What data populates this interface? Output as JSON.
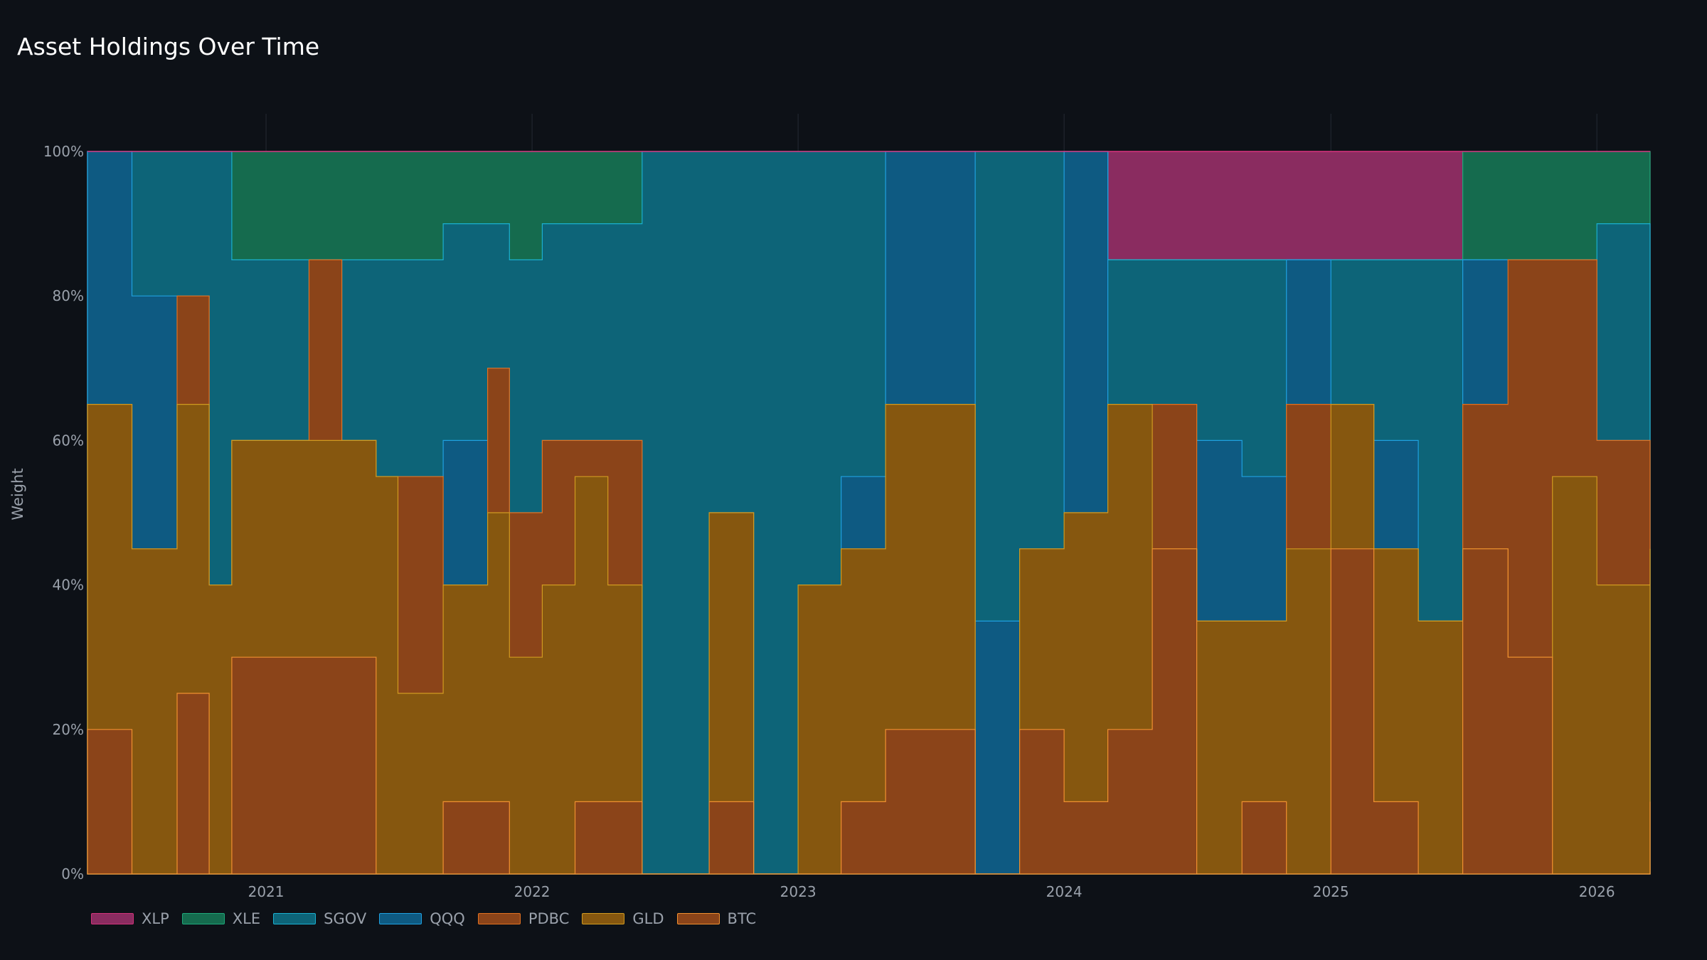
{
  "title": "Asset Holdings Over Time",
  "chart_data": {
    "type": "area",
    "stacked": true,
    "title": "Asset Holdings Over Time",
    "ylabel": "Weight",
    "xlabel": "",
    "ylim": [
      0,
      100
    ],
    "yticks": [
      "0%",
      "20%",
      "40%",
      "60%",
      "80%",
      "100%"
    ],
    "xlim": [
      "2020-05-01",
      "2026-03-15"
    ],
    "xticks": [
      "2021",
      "2022",
      "2023",
      "2024",
      "2025",
      "2026"
    ],
    "grid": true,
    "legend_position": "bottom-left",
    "legend": [
      "XLP",
      "XLE",
      "SGOV",
      "QQQ",
      "PDBC",
      "GLD",
      "BTC"
    ],
    "colors": {
      "XLP": "#8a2c60",
      "XLE": "#156b4e",
      "SGOV": "#0d6478",
      "QQQ": "#0e5a82",
      "PDBC": "#8b4419",
      "GLD": "#86570f",
      "BTC": "#8b4419"
    },
    "edge_colors": {
      "XLP": "#d0327a",
      "XLE": "#1ea87a",
      "SGOV": "#1ab0d0",
      "QQQ": "#1fa0e0",
      "PDBC": "#e07020",
      "GLD": "#d09a20",
      "BTC": "#f09030"
    },
    "series_note_units": "cumulative stacked level (%) at date; series order bottom to top: BTC, GLD, PDBC, QQQ, SGOV, XLE, XLP",
    "dates": [
      "2020-05-01",
      "2020-07-01",
      "2020-09-01",
      "2020-10-15",
      "2020-11-15",
      "2021-03-01",
      "2021-04-15",
      "2021-06-01",
      "2021-07-01",
      "2021-09-01",
      "2021-11-01",
      "2021-12-01",
      "2022-01-15",
      "2022-03-01",
      "2022-04-15",
      "2022-06-01",
      "2022-09-01",
      "2022-11-01",
      "2023-01-01",
      "2023-03-01",
      "2023-05-01",
      "2023-07-01",
      "2023-09-01",
      "2023-11-01",
      "2024-01-01",
      "2024-03-01",
      "2024-05-01",
      "2024-07-01",
      "2024-09-01",
      "2024-11-01",
      "2025-01-01",
      "2025-03-01",
      "2025-05-01",
      "2025-07-01",
      "2025-09-01",
      "2025-11-01",
      "2026-01-01",
      "2026-03-15"
    ],
    "series": [
      {
        "name": "BTC",
        "values": [
          20,
          0,
          25,
          0,
          30,
          30,
          30,
          0,
          0,
          10,
          10,
          0,
          0,
          10,
          10,
          0,
          10,
          0,
          0,
          10,
          20,
          20,
          0,
          20,
          10,
          20,
          45,
          0,
          10,
          0,
          45,
          10,
          0,
          45,
          30,
          0,
          0,
          10
        ]
      },
      {
        "name": "GLD",
        "values": [
          65,
          45,
          65,
          40,
          60,
          60,
          60,
          55,
          25,
          40,
          50,
          30,
          40,
          55,
          40,
          0,
          50,
          0,
          40,
          45,
          65,
          65,
          0,
          45,
          50,
          65,
          45,
          35,
          35,
          45,
          65,
          45,
          35,
          45,
          30,
          55,
          40,
          45
        ]
      },
      {
        "name": "PDBC",
        "values": [
          65,
          45,
          80,
          40,
          60,
          85,
          60,
          55,
          55,
          40,
          70,
          50,
          60,
          60,
          60,
          0,
          50,
          0,
          40,
          45,
          65,
          65,
          0,
          45,
          50,
          65,
          65,
          35,
          35,
          65,
          65,
          45,
          35,
          65,
          85,
          85,
          60,
          60
        ]
      },
      {
        "name": "QQQ",
        "values": [
          100,
          80,
          80,
          40,
          60,
          85,
          60,
          55,
          55,
          60,
          70,
          50,
          60,
          60,
          60,
          0,
          50,
          0,
          40,
          55,
          100,
          100,
          35,
          45,
          100,
          65,
          65,
          60,
          55,
          85,
          65,
          60,
          35,
          85,
          85,
          85,
          60,
          60
        ]
      },
      {
        "name": "SGOV",
        "values": [
          100,
          100,
          100,
          100,
          85,
          85,
          85,
          85,
          85,
          90,
          90,
          85,
          90,
          90,
          90,
          100,
          100,
          100,
          100,
          100,
          100,
          100,
          100,
          100,
          100,
          85,
          85,
          85,
          85,
          85,
          85,
          85,
          85,
          85,
          85,
          85,
          90,
          90
        ]
      },
      {
        "name": "XLE",
        "values": [
          100,
          100,
          100,
          100,
          100,
          100,
          100,
          100,
          100,
          100,
          100,
          100,
          100,
          100,
          100,
          100,
          100,
          100,
          100,
          100,
          100,
          100,
          100,
          100,
          100,
          85,
          85,
          85,
          85,
          85,
          85,
          85,
          85,
          100,
          100,
          100,
          100,
          100
        ]
      },
      {
        "name": "XLP",
        "values": [
          100,
          100,
          100,
          100,
          100,
          100,
          100,
          100,
          100,
          100,
          100,
          100,
          100,
          100,
          100,
          100,
          100,
          100,
          100,
          100,
          100,
          100,
          100,
          100,
          100,
          100,
          100,
          100,
          100,
          100,
          100,
          100,
          100,
          100,
          100,
          100,
          100,
          100
        ]
      }
    ]
  }
}
